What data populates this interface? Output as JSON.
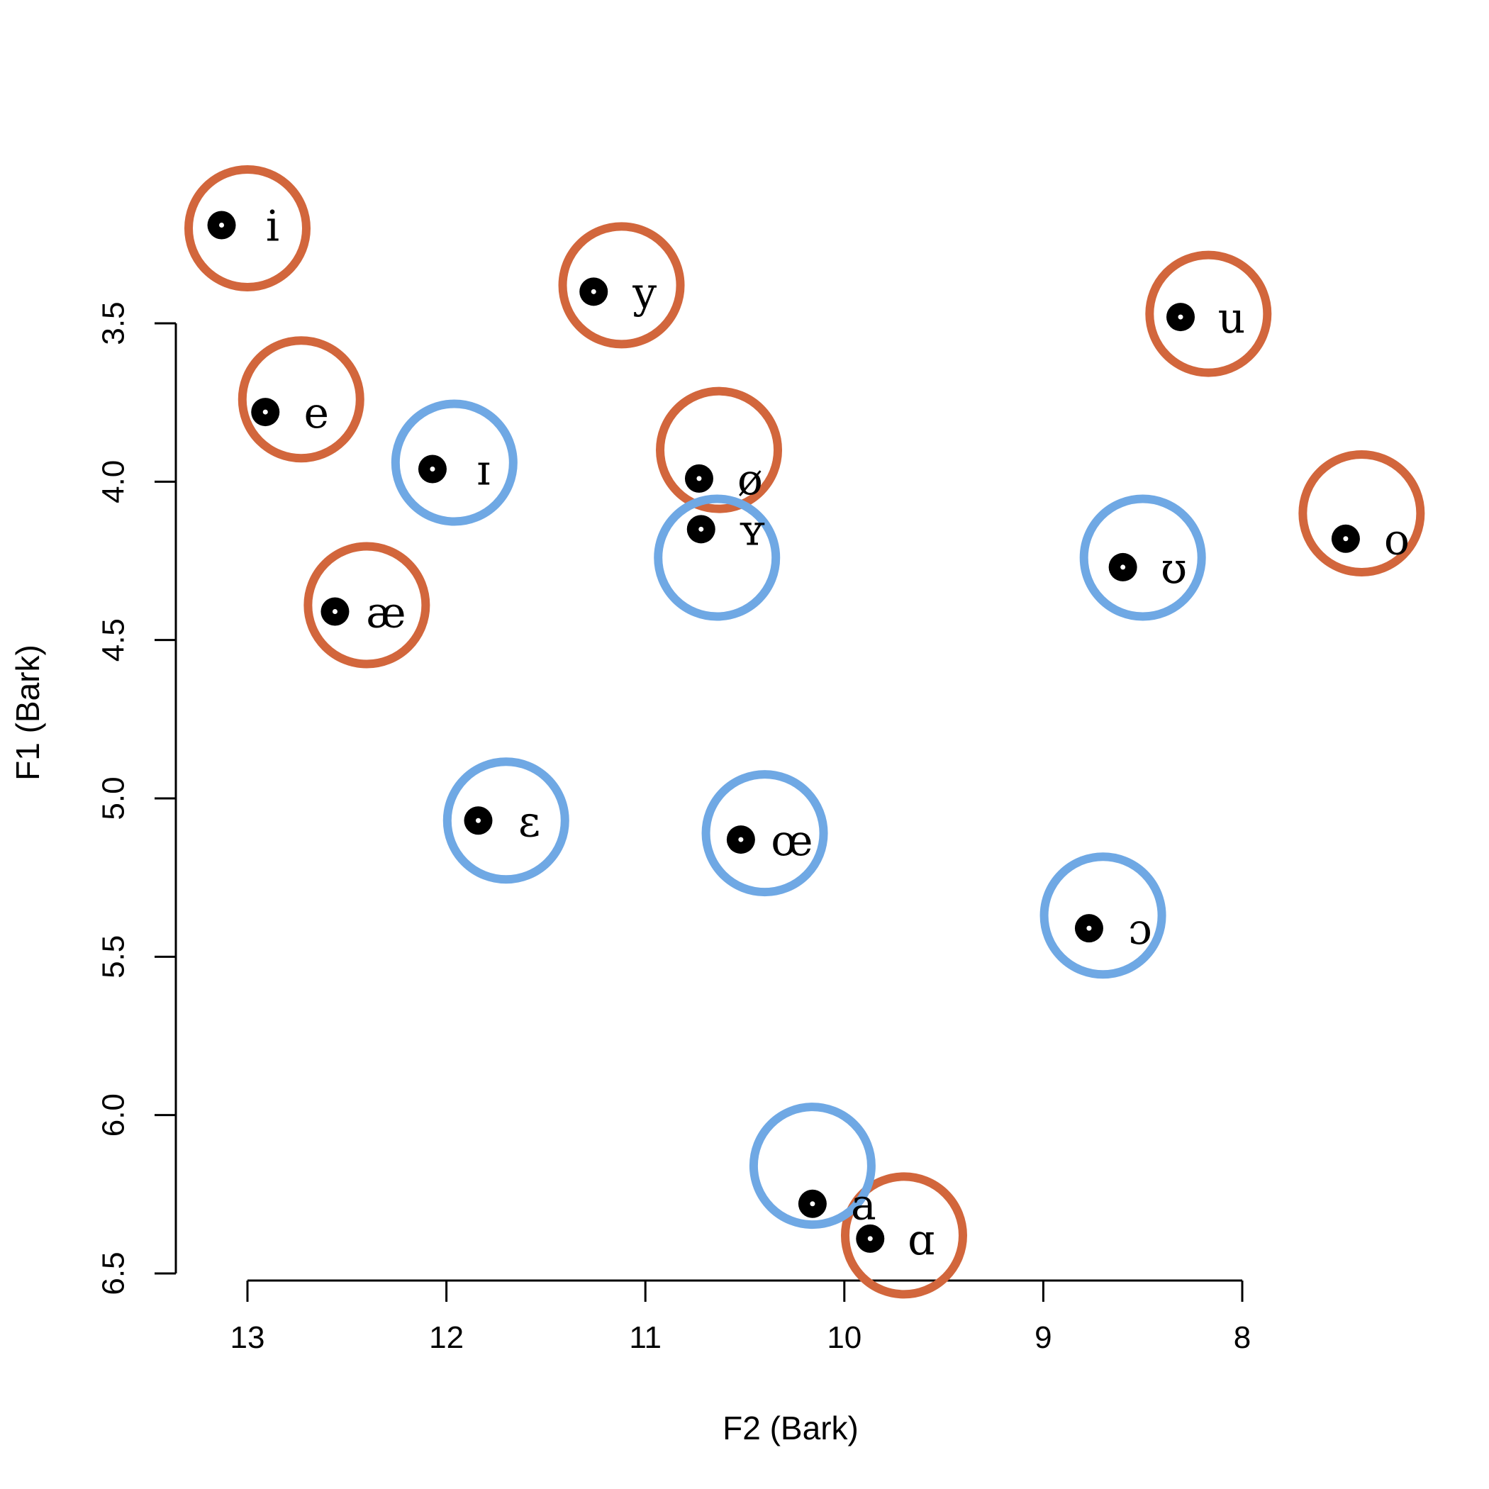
{
  "chart_data": {
    "type": "scatter",
    "xlabel": "F2 (Bark)",
    "ylabel": "F1 (Bark)",
    "x_reversed": true,
    "y_reversed": true,
    "xlim": [
      13,
      8
    ],
    "ylim": [
      3.5,
      6.5
    ],
    "x_ticks": [
      "13",
      "12",
      "11",
      "10",
      "9",
      "8"
    ],
    "y_ticks": [
      "3.5",
      "4.0",
      "4.5",
      "5.0",
      "5.5",
      "6.0",
      "6.5"
    ],
    "colors": {
      "series_a": "#d2663c",
      "series_b": "#6fa8e4",
      "point": "#000000"
    },
    "series": [
      {
        "name": "series_a",
        "color": "#d2663c",
        "points": [
          {
            "label": "i",
            "target_f2": 13.0,
            "target_f1": 3.2,
            "measured_f2": 13.13,
            "measured_f1": 3.19
          },
          {
            "label": "y",
            "target_f2": 11.12,
            "target_f1": 3.38,
            "measured_f2": 11.26,
            "measured_f1": 3.4
          },
          {
            "label": "u",
            "target_f2": 8.17,
            "target_f1": 3.47,
            "measured_f2": 8.31,
            "measured_f1": 3.48
          },
          {
            "label": "e",
            "target_f2": 12.73,
            "target_f1": 3.74,
            "measured_f2": 12.91,
            "measured_f1": 3.78
          },
          {
            "label": "ø",
            "target_f2": 10.63,
            "target_f1": 3.9,
            "measured_f2": 10.73,
            "measured_f1": 3.99
          },
          {
            "label": "o",
            "target_f2": 7.4,
            "target_f1": 4.1,
            "measured_f2": 7.48,
            "measured_f1": 4.18
          },
          {
            "label": "æ",
            "target_f2": 12.4,
            "target_f1": 4.39,
            "measured_f2": 12.56,
            "measured_f1": 4.41
          },
          {
            "label": "ɑ",
            "target_f2": 9.7,
            "target_f1": 6.38,
            "measured_f2": 9.87,
            "measured_f1": 6.39
          }
        ]
      },
      {
        "name": "series_b",
        "color": "#6fa8e4",
        "points": [
          {
            "label": "ɪ",
            "target_f2": 11.96,
            "target_f1": 3.94,
            "measured_f2": 12.07,
            "measured_f1": 3.96
          },
          {
            "label": "ʏ",
            "target_f2": 10.64,
            "target_f1": 4.24,
            "measured_f2": 10.72,
            "measured_f1": 4.15
          },
          {
            "label": "ʊ",
            "target_f2": 8.5,
            "target_f1": 4.24,
            "measured_f2": 8.6,
            "measured_f1": 4.27
          },
          {
            "label": "ɛ",
            "target_f2": 11.7,
            "target_f1": 5.07,
            "measured_f2": 11.84,
            "measured_f1": 5.07
          },
          {
            "label": "œ",
            "target_f2": 10.4,
            "target_f1": 5.11,
            "measured_f2": 10.52,
            "measured_f1": 5.13
          },
          {
            "label": "ɔ",
            "target_f2": 8.7,
            "target_f1": 5.37,
            "measured_f2": 8.77,
            "measured_f1": 5.41
          },
          {
            "label": "a",
            "target_f2": 10.16,
            "target_f1": 6.16,
            "measured_f2": 10.16,
            "measured_f1": 6.28
          }
        ]
      }
    ]
  }
}
